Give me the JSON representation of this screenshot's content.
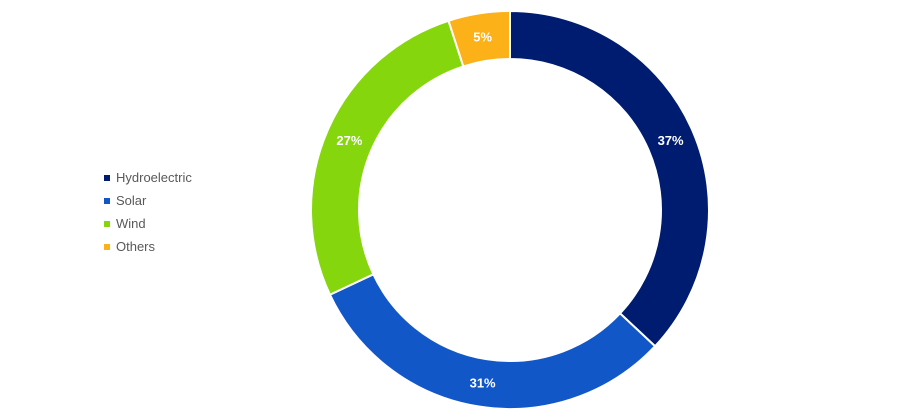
{
  "chart_data": {
    "type": "pie",
    "variant": "donut",
    "title": "",
    "legend_position": "left",
    "slices": [
      {
        "label": "Hydroelectric",
        "value": 37,
        "display": "37%",
        "color": "#001c71"
      },
      {
        "label": "Solar",
        "value": 31,
        "display": "31%",
        "color": "#1157c8"
      },
      {
        "label": "Wind",
        "value": 27,
        "display": "27%",
        "color": "#85d60d"
      },
      {
        "label": "Others",
        "value": 5,
        "display": "5%",
        "color": "#fbb117"
      }
    ]
  }
}
